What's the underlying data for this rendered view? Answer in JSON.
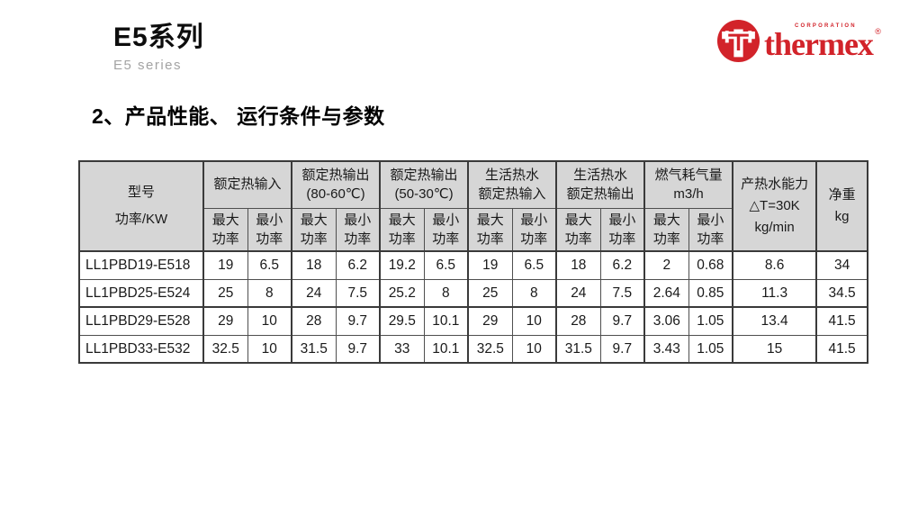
{
  "page": {
    "title_cn": "E5系列",
    "title_en": "E5 series",
    "section_heading": "2、产品性能、 运行条件与参数"
  },
  "logo": {
    "corporation": "CORPORATION",
    "brand": "thermex",
    "registered": "®"
  },
  "colors": {
    "brand_red": "#d2232a",
    "table_header_bg": "#d6d6d6",
    "table_border": "#3a3a3a",
    "subtitle_gray": "#a3a3a3"
  },
  "table": {
    "model_header": "型号\n功率/KW",
    "groups": [
      "额定热输入",
      "额定热输出\n(80-60℃)",
      "额定热输出\n(50-30℃)",
      "生活热水\n额定热输入",
      "生活热水\n额定热输出",
      "燃气耗气量\nm3/h"
    ],
    "max_label": "最大\n功率",
    "min_label": "最小\n功率",
    "capacity_header": "产热水能力\n△T=30K\nkg/min",
    "weight_header": "净重\nkg",
    "rows": [
      {
        "model": "LL1PBD19-E518",
        "values": [
          "19",
          "6.5",
          "18",
          "6.2",
          "19.2",
          "6.5",
          "19",
          "6.5",
          "18",
          "6.2",
          "2",
          "0.68",
          "8.6",
          "34"
        ]
      },
      {
        "model": "LL1PBD25-E524",
        "values": [
          "25",
          "8",
          "24",
          "7.5",
          "25.2",
          "8",
          "25",
          "8",
          "24",
          "7.5",
          "2.64",
          "0.85",
          "11.3",
          "34.5"
        ]
      },
      {
        "model": "LL1PBD29-E528",
        "values": [
          "29",
          "10",
          "28",
          "9.7",
          "29.5",
          "10.1",
          "29",
          "10",
          "28",
          "9.7",
          "3.06",
          "1.05",
          "13.4",
          "41.5"
        ]
      },
      {
        "model": "LL1PBD33-E532",
        "values": [
          "32.5",
          "10",
          "31.5",
          "9.7",
          "33",
          "10.1",
          "32.5",
          "10",
          "31.5",
          "9.7",
          "3.43",
          "1.05",
          "15",
          "41.5"
        ]
      }
    ]
  }
}
